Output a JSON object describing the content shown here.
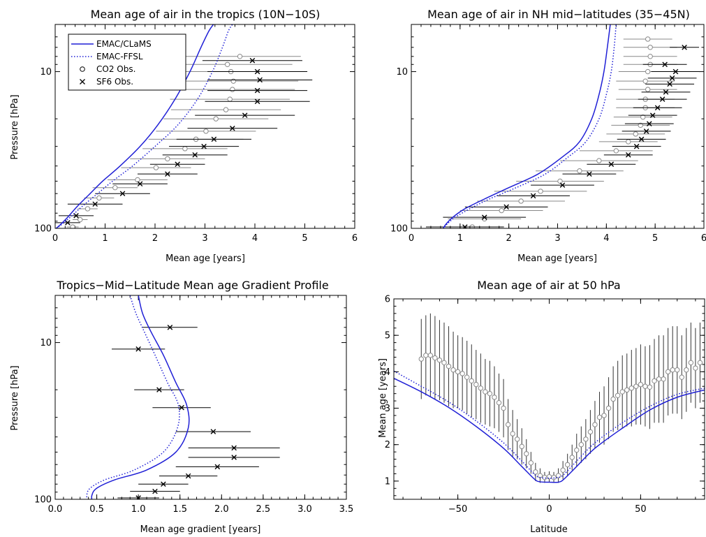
{
  "colors": {
    "model": "#1f1fd6",
    "co2": "#888888",
    "sf6": "#000000",
    "errorbar": "#000000"
  },
  "legend": {
    "placement": "top-left",
    "entries": [
      {
        "label": "EMAC/CLaMS",
        "style": "solid-line"
      },
      {
        "label": "EMAC-FFSL",
        "style": "dotted-line"
      },
      {
        "label": "CO2 Obs.",
        "style": "circle"
      },
      {
        "label": "SF6 Obs.",
        "style": "cross"
      }
    ]
  },
  "chart_data": [
    {
      "type": "line",
      "title": "Mean age of air in the tropics (10N−10S)",
      "xlabel": "Mean age [years]",
      "ylabel": "Pressure [hPa]",
      "xlim": [
        0,
        6
      ],
      "ylim": [
        100,
        5
      ],
      "yscale": "log",
      "xticks": [
        "0",
        "1",
        "2",
        "3",
        "4",
        "5",
        "6"
      ],
      "yticks": [
        "10",
        "100"
      ],
      "series": [
        {
          "name": "EMAC/CLaMS",
          "style": "solid",
          "x": [
            0.02,
            0.1,
            0.25,
            0.45,
            0.7,
            0.95,
            1.3,
            1.7,
            2.05,
            2.4,
            2.7,
            2.92,
            3.08,
            3.17
          ],
          "y": [
            100,
            95,
            85,
            72,
            60,
            50,
            40,
            30,
            22,
            15,
            10,
            7,
            5.5,
            5
          ]
        },
        {
          "name": "EMAC-FFSL",
          "style": "dotted",
          "x": [
            0.02,
            0.12,
            0.3,
            0.55,
            0.85,
            1.15,
            1.55,
            2.0,
            2.45,
            2.85,
            3.15,
            3.35,
            3.47,
            3.55
          ],
          "y": [
            100,
            95,
            85,
            72,
            60,
            50,
            40,
            30,
            22,
            15,
            10,
            7,
            5.5,
            5
          ]
        }
      ],
      "co2_obs": {
        "x": [
          0.35,
          0.5,
          0.65,
          0.88,
          1.2,
          1.65,
          2.02,
          2.25,
          2.6,
          2.82,
          3.02,
          3.22,
          3.42,
          3.5,
          3.55,
          3.57,
          3.52,
          3.45,
          3.7
        ],
        "y": [
          98,
          88,
          75,
          64,
          55,
          49,
          41,
          36,
          31,
          27,
          24,
          20,
          17.5,
          15,
          13,
          11.5,
          10,
          9,
          8
        ],
        "xerr": [
          0.12,
          0.15,
          0.2,
          0.3,
          0.45,
          0.6,
          0.7,
          0.75,
          0.85,
          0.95,
          1.0,
          1.05,
          1.1,
          1.2,
          1.25,
          1.3,
          1.35,
          1.3,
          1.22
        ]
      },
      "sf6_obs": {
        "x": [
          0.25,
          0.42,
          0.8,
          1.35,
          1.7,
          2.25,
          2.45,
          2.8,
          2.98,
          3.18,
          3.55,
          3.8,
          4.05,
          4.05,
          4.1,
          4.05,
          3.95
        ],
        "y": [
          92,
          83,
          70,
          60,
          52,
          45,
          39,
          34,
          30,
          27,
          23,
          19,
          15.5,
          13.2,
          11.3,
          10,
          8.5
        ],
        "xerr": [
          0.25,
          0.35,
          0.55,
          0.55,
          0.55,
          0.6,
          0.55,
          0.65,
          0.7,
          0.75,
          0.9,
          1.0,
          1.05,
          1.0,
          1.05,
          1.0,
          1.0
        ]
      }
    },
    {
      "type": "line",
      "title": "Mean age of air in NH mid−latitudes (35−45N)",
      "xlabel": "Mean age [years]",
      "ylabel": "",
      "xlim": [
        0,
        6
      ],
      "ylim": [
        100,
        5
      ],
      "yscale": "log",
      "xticks": [
        "0",
        "1",
        "2",
        "3",
        "4",
        "5",
        "6"
      ],
      "yticks": [
        "10",
        "100"
      ],
      "series": [
        {
          "name": "EMAC/CLaMS",
          "style": "solid",
          "x": [
            0.62,
            0.7,
            0.85,
            1.1,
            1.5,
            2.0,
            2.6,
            3.1,
            3.45,
            3.7,
            3.85,
            3.95,
            4.02,
            4.08
          ],
          "y": [
            105,
            95,
            85,
            75,
            65,
            55,
            45,
            35,
            28,
            20,
            14,
            10,
            7,
            5
          ]
        },
        {
          "name": "EMAC-FFSL",
          "style": "dotted",
          "x": [
            0.62,
            0.72,
            0.9,
            1.2,
            1.6,
            2.15,
            2.75,
            3.22,
            3.58,
            3.85,
            4.0,
            4.1,
            4.16,
            4.2
          ],
          "y": [
            105,
            95,
            85,
            75,
            65,
            55,
            45,
            35,
            28,
            20,
            14,
            10,
            7,
            5
          ]
        }
      ],
      "co2_obs": {
        "x": [
          1.25,
          1.5,
          1.85,
          2.25,
          2.65,
          3.05,
          3.45,
          3.85,
          4.2,
          4.45,
          4.6,
          4.7,
          4.75,
          4.8,
          4.8,
          4.85,
          4.8,
          4.85,
          4.9,
          4.9,
          4.9,
          4.85
        ],
        "y": [
          98,
          87,
          77,
          67,
          58,
          50,
          43,
          37,
          32,
          28,
          25,
          22,
          19.5,
          17,
          15,
          13,
          11.5,
          10,
          9,
          8,
          7,
          6.2
        ],
        "xerr": [
          0.6,
          0.75,
          0.85,
          0.9,
          0.95,
          0.9,
          0.9,
          0.8,
          0.75,
          0.6,
          0.6,
          0.6,
          0.6,
          0.6,
          0.6,
          0.6,
          0.6,
          0.6,
          0.55,
          0.55,
          0.55,
          0.5
        ]
      },
      "sf6_obs": {
        "x": [
          1.1,
          1.5,
          1.95,
          2.5,
          3.1,
          3.65,
          4.1,
          4.45,
          4.62,
          4.72,
          4.82,
          4.88,
          4.95,
          5.05,
          5.15,
          5.22,
          5.3,
          5.35,
          5.42,
          5.2,
          5.6
        ],
        "y": [
          98,
          85,
          73,
          62,
          53,
          45,
          39,
          34,
          30,
          27,
          24,
          21.5,
          19,
          17,
          15,
          13.5,
          12,
          11,
          10,
          9,
          7
        ],
        "xerr": [
          0.8,
          0.85,
          0.85,
          0.75,
          0.65,
          0.55,
          0.5,
          0.5,
          0.5,
          0.5,
          0.5,
          0.5,
          0.5,
          0.5,
          0.5,
          0.5,
          0.5,
          0.5,
          0.5,
          0.45,
          0.3
        ]
      }
    },
    {
      "type": "line",
      "title": "Tropics−Mid−Latitude Mean age Gradient Profile",
      "xlabel": "Mean age gradient [years]",
      "ylabel": "Pressure [hPa]",
      "xlim": [
        0,
        3.5
      ],
      "ylim": [
        100,
        5
      ],
      "yscale": "log",
      "xticks": [
        "0.0",
        "0.5",
        "1.0",
        "1.5",
        "2.0",
        "2.5",
        "3.0",
        "3.5"
      ],
      "yticks": [
        "10",
        "100"
      ],
      "series": [
        {
          "name": "EMAC/CLaMS",
          "style": "solid",
          "x": [
            0.45,
            0.44,
            0.5,
            0.72,
            1.1,
            1.45,
            1.6,
            1.58,
            1.45,
            1.3,
            1.15,
            1.05,
            1.0
          ],
          "y": [
            105,
            95,
            85,
            75,
            65,
            50,
            35,
            25,
            18,
            12,
            8.5,
            6.5,
            5
          ]
        },
        {
          "name": "EMAC-FFSL",
          "style": "dotted",
          "x": [
            0.4,
            0.38,
            0.42,
            0.6,
            0.95,
            1.3,
            1.47,
            1.48,
            1.35,
            1.2,
            1.07,
            0.97,
            0.9
          ],
          "y": [
            105,
            95,
            85,
            75,
            65,
            50,
            35,
            25,
            18,
            12,
            8.5,
            6.5,
            5
          ]
        }
      ],
      "sf6_obs": {
        "x": [
          1.0,
          1.2,
          1.3,
          1.6,
          1.95,
          2.15,
          2.15,
          1.9,
          1.52,
          1.25,
          1.0,
          1.38
        ],
        "y": [
          98,
          89,
          80,
          71,
          62,
          54,
          47,
          37,
          26,
          20,
          11,
          8
        ],
        "xerr": [
          0.25,
          0.3,
          0.3,
          0.35,
          0.5,
          0.55,
          0.55,
          0.45,
          0.35,
          0.3,
          0.32,
          0.33
        ]
      }
    },
    {
      "type": "line",
      "title": "Mean age of air at 50 hPa",
      "xlabel": "Latitude",
      "ylabel": "Mean age [years]",
      "xlim": [
        -85,
        85
      ],
      "ylim": [
        0.5,
        6
      ],
      "xticks": [
        "−50",
        "0",
        "50"
      ],
      "yticks": [
        "1",
        "2",
        "3",
        "4",
        "5",
        "6"
      ],
      "series": [
        {
          "name": "EMAC/CLaMS",
          "style": "solid",
          "x": [
            -85,
            -70,
            -55,
            -40,
            -25,
            -15,
            -8,
            -5,
            0,
            5,
            8,
            15,
            25,
            40,
            55,
            70,
            85
          ],
          "y": [
            3.82,
            3.45,
            3.02,
            2.5,
            1.9,
            1.4,
            1.05,
            0.98,
            0.97,
            0.97,
            1.05,
            1.4,
            1.9,
            2.45,
            2.95,
            3.3,
            3.5
          ]
        },
        {
          "name": "EMAC-FFSL",
          "style": "dotted",
          "x": [
            -85,
            -70,
            -55,
            -40,
            -25,
            -15,
            -8,
            -5,
            0,
            5,
            8,
            15,
            25,
            40,
            55,
            70,
            85
          ],
          "y": [
            4.02,
            3.6,
            3.17,
            2.65,
            2.05,
            1.55,
            1.18,
            1.1,
            1.08,
            1.1,
            1.18,
            1.55,
            2.05,
            2.6,
            3.05,
            3.38,
            3.55
          ]
        }
      ],
      "co2_obs": {
        "x": [
          -70,
          -67.5,
          -65,
          -62.5,
          -60,
          -57.5,
          -55,
          -52.5,
          -50,
          -47.5,
          -45,
          -42.5,
          -40,
          -37.5,
          -35,
          -32.5,
          -30,
          -27.5,
          -25,
          -22.5,
          -20,
          -17.5,
          -15,
          -12.5,
          -10,
          -7.5,
          -5,
          -2.5,
          0,
          2.5,
          5,
          7.5,
          10,
          12.5,
          15,
          17.5,
          20,
          22.5,
          25,
          27.5,
          30,
          32.5,
          35,
          37.5,
          40,
          42.5,
          45,
          47.5,
          50,
          52.5,
          55,
          57.5,
          60,
          62.5,
          65,
          67.5,
          70,
          72.5,
          75,
          77.5,
          80,
          82.5
        ],
        "y": [
          4.35,
          4.45,
          4.45,
          4.38,
          4.32,
          4.25,
          4.15,
          4.05,
          4.0,
          3.95,
          3.85,
          3.75,
          3.65,
          3.55,
          3.45,
          3.4,
          3.3,
          3.15,
          3.0,
          2.55,
          2.3,
          2.15,
          1.95,
          1.75,
          1.5,
          1.25,
          1.15,
          1.1,
          1.12,
          1.1,
          1.15,
          1.3,
          1.45,
          1.65,
          1.85,
          2.0,
          2.15,
          2.35,
          2.55,
          2.75,
          2.8,
          3.0,
          3.25,
          3.35,
          3.45,
          3.5,
          3.55,
          3.6,
          3.65,
          3.6,
          3.58,
          3.75,
          3.8,
          3.8,
          4.0,
          4.05,
          4.05,
          3.85,
          4.05,
          4.25,
          4.1,
          4.25
        ],
        "yerr": [
          1.1,
          1.1,
          1.15,
          1.15,
          1.1,
          1.1,
          1.1,
          1.05,
          1.0,
          1.0,
          1.0,
          1.0,
          0.95,
          0.95,
          0.9,
          0.9,
          0.85,
          0.8,
          0.8,
          0.7,
          0.65,
          0.55,
          0.5,
          0.4,
          0.3,
          0.25,
          0.2,
          0.15,
          0.15,
          0.15,
          0.2,
          0.25,
          0.3,
          0.35,
          0.45,
          0.5,
          0.55,
          0.6,
          0.65,
          0.7,
          0.8,
          0.85,
          0.9,
          0.95,
          1.0,
          1.0,
          1.05,
          1.05,
          1.1,
          1.1,
          1.15,
          1.15,
          1.2,
          1.2,
          1.2,
          1.2,
          1.2,
          1.15,
          1.15,
          1.1,
          1.1,
          1.1
        ]
      }
    }
  ]
}
